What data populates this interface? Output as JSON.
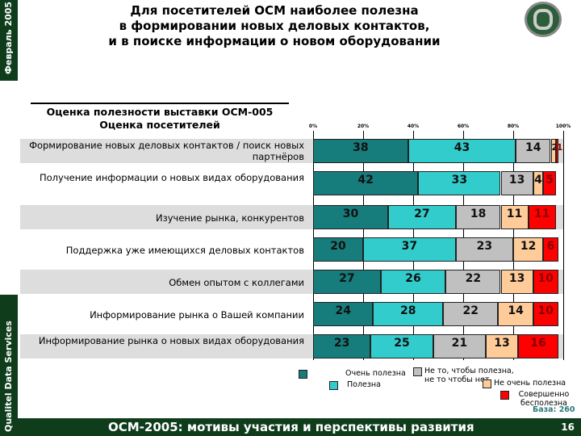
{
  "header": {
    "date": "Февраль 2005",
    "company": "Qualitel Data Services",
    "title_lines": [
      "Для посетителей ОСМ наиболее полезна",
      "в формировании новых деловых контактов,",
      "и в поиске информации о новом оборудовании"
    ]
  },
  "chart_data": {
    "type": "bar",
    "stacked": "horizontal-100%",
    "title": "Оценка полезности выставки ОСМ-005",
    "subtitle": "Оценка посетителей",
    "xticks": [
      "0%",
      "20%",
      "40%",
      "60%",
      "80%",
      "100%"
    ],
    "xlim": [
      0,
      100
    ],
    "categories": [
      "Формирование новых деловых контактов / поиск новых партнёров",
      "Получение информации о новых видах оборудования",
      "Изучение рынка, конкурентов",
      "Поддержка уже имеющихся деловых контактов",
      "Обмен опытом с коллегами",
      "Информирование рынка о Вашей компании",
      "Информирование рынка о новых видах оборудования"
    ],
    "series": [
      {
        "name": "Очень полезна",
        "color": "#167c7c",
        "values": [
          38,
          42,
          30,
          20,
          27,
          24,
          23
        ]
      },
      {
        "name": "Полезна",
        "color": "#33cccc",
        "values": [
          43,
          33,
          27,
          37,
          26,
          28,
          25
        ]
      },
      {
        "name": "Не то, чтобы полезна, не то чтобы нет",
        "color": "#c0c0c0",
        "values": [
          14,
          13,
          18,
          23,
          22,
          22,
          21
        ]
      },
      {
        "name": "Не очень полезна",
        "color": "#ffcc99",
        "values": [
          2,
          4,
          11,
          12,
          13,
          14,
          13
        ]
      },
      {
        "name": "Совершенно бесполезна",
        "color": "#ff0000",
        "values": [
          1,
          5,
          11,
          6,
          10,
          10,
          16
        ]
      }
    ],
    "base": "База: 260"
  },
  "footer": {
    "text": "ОСМ-2005: мотивы участия и перспективы развития",
    "page": "16"
  }
}
